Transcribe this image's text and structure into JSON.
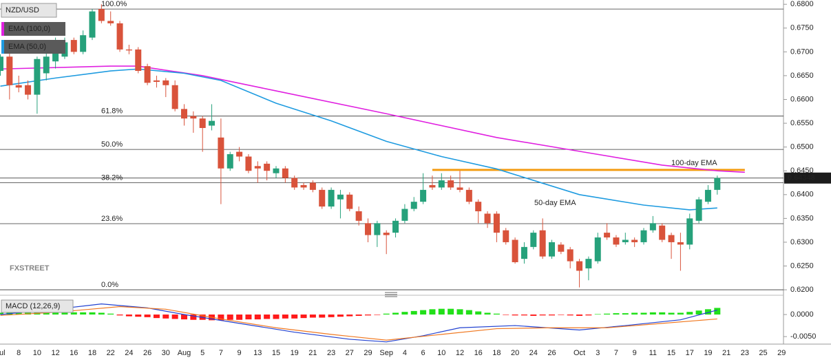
{
  "chart_data": [
    {
      "type": "candlestick",
      "symbol": "NZD/USD",
      "categories": [
        "Jul",
        null,
        "8",
        null,
        "10",
        null,
        "12",
        null,
        "16",
        null,
        "18",
        null,
        "22",
        null,
        "24",
        null,
        "26",
        null,
        "30",
        null,
        "Aug",
        null,
        "5",
        null,
        "7",
        null,
        "9",
        null,
        "13",
        null,
        "15",
        null,
        "19",
        null,
        "21",
        null,
        "23",
        null,
        "27",
        null,
        "29",
        null,
        "Sep",
        null,
        "4",
        null,
        "6",
        null,
        "10",
        null,
        "12",
        null,
        "16",
        null,
        "18",
        null,
        "20",
        null,
        "24",
        null,
        "26",
        null,
        null,
        "Oct",
        null,
        "3",
        null,
        "7",
        null,
        "9",
        null,
        "11",
        null,
        "15",
        null,
        "17",
        null,
        "19",
        null,
        "21",
        null,
        "23",
        null,
        "25",
        null,
        "29"
      ],
      "open": [
        0.666,
        0.669,
        0.663,
        0.663,
        0.661,
        0.6655,
        0.668,
        0.669,
        0.6725,
        0.67,
        0.673,
        0.679,
        0.6765,
        0.676,
        0.6705,
        0.6705,
        0.667,
        0.664,
        0.664,
        0.663,
        0.658,
        0.6565,
        0.656,
        0.6545,
        0.652,
        0.6455,
        0.649,
        0.648,
        0.646,
        0.6465,
        0.6445,
        0.6455,
        0.6435,
        0.642,
        0.6425,
        0.641,
        0.6375,
        0.639,
        0.64,
        0.6365,
        0.634,
        0.6315,
        0.632,
        0.632,
        0.6345,
        0.637,
        0.6385,
        0.642,
        0.6415,
        0.643,
        0.6415,
        0.641,
        0.6385,
        0.636,
        0.636,
        0.6325,
        0.6305,
        0.6265,
        0.629,
        0.6325,
        0.627,
        0.6295,
        0.6285,
        0.626,
        0.6245,
        0.626,
        0.632,
        0.631,
        0.63,
        0.6305,
        0.63,
        0.6325,
        0.6335,
        0.6315,
        0.63,
        0.6295,
        0.6345,
        0.6385,
        0.641,
        null,
        null,
        null,
        null,
        null,
        null,
        null
      ],
      "high": [
        0.6695,
        0.67,
        0.665,
        0.664,
        0.669,
        0.671,
        0.673,
        0.673,
        0.673,
        0.6745,
        0.679,
        0.68,
        0.6785,
        0.6765,
        0.6715,
        0.671,
        0.6675,
        0.665,
        0.6645,
        0.664,
        0.659,
        0.6575,
        0.6565,
        0.659,
        0.656,
        0.649,
        0.65,
        0.6485,
        0.647,
        0.647,
        0.646,
        0.646,
        0.644,
        0.6425,
        0.643,
        0.6415,
        0.6415,
        0.641,
        0.6405,
        0.6375,
        0.635,
        0.6345,
        0.6325,
        0.635,
        0.638,
        0.6395,
        0.6445,
        0.644,
        0.6445,
        0.644,
        0.645,
        0.6415,
        0.639,
        0.6365,
        0.6365,
        0.633,
        0.631,
        0.63,
        0.6325,
        0.635,
        0.6305,
        0.63,
        0.629,
        0.6265,
        0.627,
        0.632,
        0.634,
        0.6315,
        0.632,
        0.631,
        0.633,
        0.6355,
        0.634,
        0.632,
        0.632,
        0.636,
        0.6395,
        0.642,
        0.644,
        null,
        null,
        null,
        null,
        null,
        null,
        null
      ],
      "low": [
        0.665,
        0.66,
        0.6615,
        0.66,
        0.657,
        0.664,
        0.6665,
        0.6685,
        0.6695,
        0.6695,
        0.6725,
        0.676,
        0.6755,
        0.67,
        0.6695,
        0.6655,
        0.663,
        0.6625,
        0.6605,
        0.6575,
        0.6545,
        0.653,
        0.649,
        0.6535,
        0.638,
        0.645,
        0.647,
        0.6445,
        0.6425,
        0.643,
        0.6435,
        0.6425,
        0.641,
        0.641,
        0.6405,
        0.637,
        0.637,
        0.635,
        0.6365,
        0.6335,
        0.63,
        0.629,
        0.6275,
        0.631,
        0.634,
        0.6365,
        0.638,
        0.641,
        0.641,
        0.641,
        0.6405,
        0.638,
        0.634,
        0.633,
        0.63,
        0.6295,
        0.6255,
        0.6255,
        0.6285,
        0.6265,
        0.6265,
        0.6275,
        0.6245,
        0.6205,
        0.622,
        0.6255,
        0.6305,
        0.629,
        0.6295,
        0.629,
        0.6295,
        0.632,
        0.63,
        0.6265,
        0.624,
        0.6285,
        0.634,
        0.638,
        0.64,
        null,
        null,
        null,
        null,
        null,
        null,
        null
      ],
      "close": [
        0.669,
        0.663,
        0.6625,
        0.661,
        0.6685,
        0.669,
        0.6715,
        0.672,
        0.67,
        0.6735,
        0.6785,
        0.6765,
        0.676,
        0.6705,
        0.6703,
        0.666,
        0.6635,
        0.6637,
        0.663,
        0.658,
        0.656,
        0.656,
        0.654,
        0.6555,
        0.6455,
        0.6485,
        0.648,
        0.645,
        0.6455,
        0.645,
        0.6455,
        0.6435,
        0.6415,
        0.6415,
        0.641,
        0.6375,
        0.641,
        0.64,
        0.637,
        0.6345,
        0.6315,
        0.634,
        0.6315,
        0.6345,
        0.637,
        0.6385,
        0.641,
        0.6415,
        0.643,
        0.6415,
        0.641,
        0.6385,
        0.6365,
        0.634,
        0.632,
        0.63,
        0.6258,
        0.629,
        0.632,
        0.627,
        0.63,
        0.628,
        0.626,
        0.624,
        0.6265,
        0.631,
        0.631,
        0.6295,
        0.6305,
        0.63,
        0.6325,
        0.634,
        0.6305,
        0.63,
        0.6295,
        0.635,
        0.639,
        0.641,
        0.6435,
        null,
        null,
        null,
        null,
        null,
        null,
        null
      ],
      "up_color": "#26a17b",
      "down_color": "#d9533b",
      "series": [
        {
          "name": "EMA (100,0)",
          "color": "#e020e0",
          "x": [
            0,
            12,
            15,
            22,
            30,
            42,
            54,
            63,
            72,
            78,
            81
          ],
          "values": [
            0.6664,
            0.667,
            0.667,
            0.665,
            0.6618,
            0.657,
            0.652,
            0.6491,
            0.6462,
            0.645,
            0.6447
          ]
        },
        {
          "name": "EMA (50,0)",
          "color": "#1e9be0",
          "x": [
            0,
            6,
            12,
            15,
            20,
            24,
            30,
            36,
            42,
            48,
            54,
            58,
            63,
            70,
            75,
            78
          ],
          "values": [
            0.6628,
            0.6645,
            0.666,
            0.6664,
            0.6655,
            0.664,
            0.6592,
            0.6555,
            0.6512,
            0.648,
            0.6454,
            0.643,
            0.64,
            0.6378,
            0.6368,
            0.6372
          ]
        }
      ],
      "annotations": [
        {
          "text": "100-day EMA",
          "color": "#e020e0"
        },
        {
          "text": "50-day EMA",
          "color": "#1e9be0"
        }
      ],
      "resistance": {
        "value": 0.6452,
        "x": [
          47,
          81
        ],
        "color": "#f39c12"
      },
      "fib_levels": [
        {
          "value": 0.679,
          "label": "100.0%"
        },
        {
          "value": 0.6565,
          "label": "61.8%"
        },
        {
          "value": 0.6495,
          "label": "50.0%"
        },
        {
          "value": 0.6425,
          "label": "38.2%"
        },
        {
          "value": 0.6339,
          "label": "23.6%"
        },
        {
          "value": 0.62,
          "label": "0.0%"
        }
      ],
      "current_price": 0.64348,
      "watermark": "FXSTREET",
      "ylim": [
        0.619,
        0.6809
      ],
      "yticks": [
        {
          "value": 0.68,
          "label": "0.6800"
        },
        {
          "value": 0.675,
          "label": "0.6750"
        },
        {
          "value": 0.67,
          "label": "0.6700"
        },
        {
          "value": 0.665,
          "label": "0.6650"
        },
        {
          "value": 0.66,
          "label": "0.6600"
        },
        {
          "value": 0.655,
          "label": "0.6550"
        },
        {
          "value": 0.65,
          "label": "0.6500"
        },
        {
          "value": 0.645,
          "label": "0.6450"
        },
        {
          "value": 0.64,
          "label": "0.6400"
        },
        {
          "value": 0.635,
          "label": "0.6350"
        },
        {
          "value": 0.63,
          "label": "0.6300"
        },
        {
          "value": 0.625,
          "label": "0.6250"
        },
        {
          "value": 0.62,
          "label": "0.6200"
        }
      ]
    },
    {
      "type": "macd",
      "title": "MACD (12,26,9)",
      "histogram": [
        0.0004,
        0.0005,
        0.0005,
        0.0006,
        0.0006,
        0.0006,
        0.0006,
        0.0006,
        0.0005,
        0.0005,
        0.0005,
        0.0004,
        0.0002,
        -0.0002,
        -0.0004,
        -0.0005,
        -0.0006,
        -0.0008,
        -0.0009,
        -0.001,
        -0.0011,
        -0.0012,
        -0.0012,
        -0.0013,
        -0.0013,
        -0.0012,
        -0.0012,
        -0.0011,
        -0.0011,
        -0.001,
        -0.001,
        -0.0009,
        -0.0009,
        -0.0008,
        -0.0007,
        -0.0007,
        -0.0006,
        -0.0005,
        -0.0004,
        -0.0003,
        -0.0002,
        -0.0001,
        0.0002,
        0.0004,
        0.0006,
        0.0008,
        0.001,
        0.0012,
        0.0013,
        0.0013,
        0.0012,
        0.001,
        0.0007,
        0.0004,
        0.0002,
        -0.0001,
        -0.0002,
        -0.0002,
        -0.0003,
        -0.0002,
        -0.0002,
        -0.0001,
        -0.0002,
        -0.0003,
        -0.0002,
        0.0001,
        0.0002,
        0.0003,
        0.0003,
        0.0004,
        0.0004,
        0.0005,
        0.0005,
        0.0004,
        0.0004,
        0.0006,
        0.0009,
        0.0012,
        0.0015,
        null,
        null,
        null,
        null,
        null,
        null,
        null
      ],
      "up_color": "#22e01a",
      "down_color": "#ff1a1a",
      "series": [
        {
          "color": "#2040d0",
          "x": [
            0,
            6,
            11,
            16,
            20,
            26,
            32,
            38,
            42,
            46,
            50,
            56,
            63,
            68,
            74,
            78
          ],
          "values": [
            0.0,
            0.0012,
            0.0024,
            0.0015,
            0.0,
            -0.002,
            -0.004,
            -0.0056,
            -0.0062,
            -0.0048,
            -0.003,
            -0.0025,
            -0.0035,
            -0.0025,
            -0.0012,
            0.001
          ]
        },
        {
          "color": "#f07820",
          "x": [
            0,
            6,
            13,
            18,
            24,
            30,
            36,
            42,
            48,
            54,
            60,
            66,
            72,
            78
          ],
          "values": [
            -0.0002,
            0.0005,
            0.0018,
            0.0012,
            -0.001,
            -0.003,
            -0.0045,
            -0.0058,
            -0.0045,
            -0.0032,
            -0.003,
            -0.003,
            -0.002,
            -0.001
          ]
        }
      ],
      "ylim": [
        -0.0067,
        0.0039
      ],
      "yticks": [
        {
          "value": 0,
          "label": "0.0000"
        },
        {
          "value": -0.005,
          "label": "-0.0050"
        }
      ]
    }
  ]
}
